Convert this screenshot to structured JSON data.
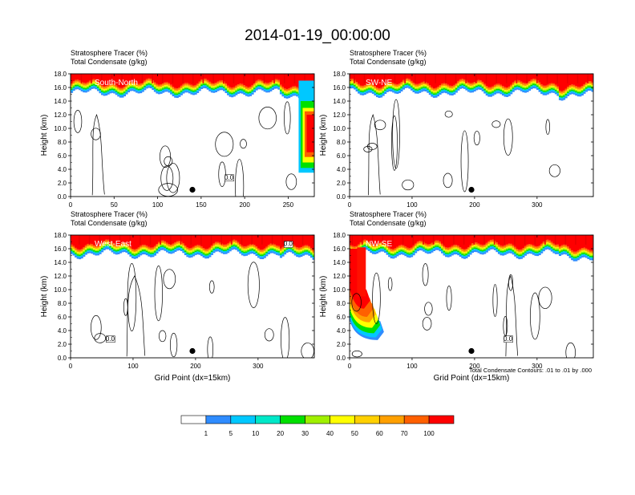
{
  "figure_title": "2014-01-19_00:00:00",
  "panel_labels": {
    "line1": "Stratosphere Tracer   (%)",
    "line2": "Total Condensate   (g/kg)"
  },
  "contour_note": "Total Condensate Contours: .01 to .01 by .000",
  "chart_data": [
    {
      "type": "heatmap",
      "section": "South-North",
      "xlabel": "",
      "ylabel": "Height (km)",
      "xlim": [
        0,
        280
      ],
      "ylim": [
        0,
        18
      ],
      "x_ticks": [
        "0",
        "50",
        "100",
        "150",
        "200",
        "250"
      ],
      "y_ticks": [
        "0.0",
        "2.0",
        "4.0",
        "6.0",
        "8.0",
        "10.0",
        "12.0",
        "14.0",
        "16.0",
        "18.0"
      ],
      "marker": {
        "x": 140,
        "y": 1.0
      },
      "contour_labels": [
        "0.0"
      ]
    },
    {
      "type": "heatmap",
      "section": "SW-NE",
      "xlabel": "",
      "ylabel": "Height (km)",
      "xlim": [
        0,
        390
      ],
      "ylim": [
        0,
        18
      ],
      "x_ticks": [
        "0",
        "100",
        "200",
        "300"
      ],
      "y_ticks": [
        "0.0",
        "2.0",
        "4.0",
        "6.0",
        "8.0",
        "10.0",
        "12.0",
        "14.0",
        "16.0",
        "18.0"
      ],
      "marker": {
        "x": 195,
        "y": 1.0
      },
      "contour_labels": []
    },
    {
      "type": "heatmap",
      "section": "West-East",
      "xlabel": "Grid Point (dx=15km)",
      "ylabel": "Height (km)",
      "xlim": [
        0,
        390
      ],
      "ylim": [
        0,
        18
      ],
      "x_ticks": [
        "0",
        "100",
        "200",
        "300"
      ],
      "y_ticks": [
        "0.0",
        "2.0",
        "4.0",
        "6.0",
        "8.0",
        "10.0",
        "12.0",
        "14.0",
        "16.0",
        "18.0"
      ],
      "marker": {
        "x": 195,
        "y": 1.0
      },
      "contour_labels": [
        "0.0",
        "0.0"
      ]
    },
    {
      "type": "heatmap",
      "section": "NW-SE",
      "xlabel": "Grid Point (dx=15km)",
      "ylabel": "Height (km)",
      "xlim": [
        0,
        390
      ],
      "ylim": [
        0,
        18
      ],
      "x_ticks": [
        "0",
        "100",
        "200",
        "300"
      ],
      "y_ticks": [
        "0.0",
        "2.0",
        "4.0",
        "6.0",
        "8.0",
        "10.0",
        "12.0",
        "14.0",
        "16.0",
        "18.0"
      ],
      "marker": {
        "x": 195,
        "y": 1.0
      },
      "contour_labels": [
        "0.0"
      ]
    }
  ],
  "colorbar": {
    "labels": [
      "1",
      "5",
      "10",
      "20",
      "30",
      "40",
      "50",
      "60",
      "70",
      "100"
    ],
    "colors": [
      "#ffffff",
      "#2f8cff",
      "#00c8ff",
      "#00e8c8",
      "#00e000",
      "#a0f000",
      "#ffff00",
      "#ffd000",
      "#ffa000",
      "#ff6000",
      "#ff0000"
    ]
  }
}
